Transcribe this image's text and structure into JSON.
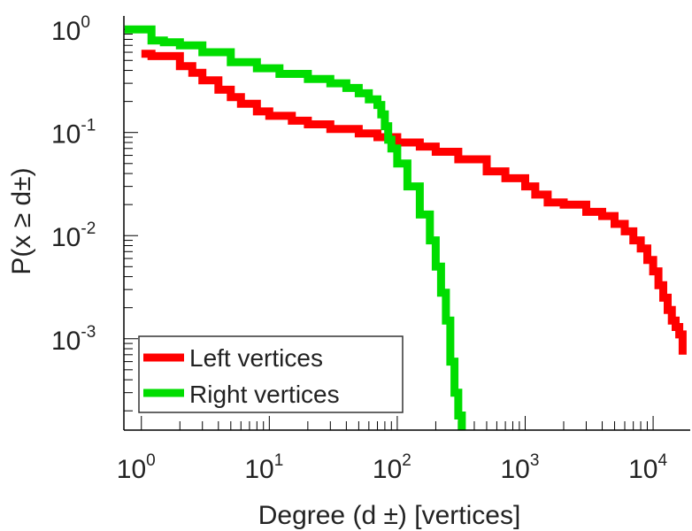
{
  "chart_data": {
    "type": "line",
    "title": "",
    "xlabel": "Degree (d ±) [vertices]",
    "ylabel": "P(x ≥ d±)",
    "xscale": "log",
    "yscale": "log",
    "xlim": [
      0.73,
      19500
    ],
    "ylim": [
      0.00013,
      1.35
    ],
    "x_ticks": [
      {
        "base": "10",
        "exp": "0",
        "value": 1
      },
      {
        "base": "10",
        "exp": "1",
        "value": 10
      },
      {
        "base": "10",
        "exp": "2",
        "value": 100
      },
      {
        "base": "10",
        "exp": "3",
        "value": 1000
      },
      {
        "base": "10",
        "exp": "4",
        "value": 10000
      }
    ],
    "y_ticks": [
      {
        "base": "10",
        "exp": "0",
        "value": 1
      },
      {
        "base": "10",
        "exp": "-1",
        "value": 0.1
      },
      {
        "base": "10",
        "exp": "-2",
        "value": 0.01
      },
      {
        "base": "10",
        "exp": "-3",
        "value": 0.001
      }
    ],
    "legend_position": "bottom-left",
    "series": [
      {
        "name": "Left vertices",
        "color": "#ff0000",
        "x": [
          1,
          1.2,
          2,
          2.5,
          3,
          4,
          5,
          6,
          8,
          10,
          15,
          20,
          30,
          50,
          70,
          100,
          150,
          200,
          300,
          500,
          700,
          1000,
          1200,
          1500,
          2000,
          3000,
          4000,
          5000,
          6000,
          7000,
          8000,
          9000,
          10000,
          11000,
          12000,
          13000,
          14000,
          15000,
          16000,
          17000
        ],
        "y": [
          0.58,
          0.55,
          0.44,
          0.38,
          0.32,
          0.26,
          0.22,
          0.19,
          0.16,
          0.145,
          0.13,
          0.12,
          0.108,
          0.098,
          0.09,
          0.08,
          0.073,
          0.065,
          0.055,
          0.042,
          0.036,
          0.03,
          0.025,
          0.021,
          0.02,
          0.017,
          0.0155,
          0.013,
          0.011,
          0.009,
          0.0075,
          0.0058,
          0.0045,
          0.0033,
          0.0025,
          0.0019,
          0.0015,
          0.0013,
          0.0011,
          0.0007
        ]
      },
      {
        "name": "Right vertices",
        "color": "#00dd00",
        "x": [
          0.74,
          1,
          1.2,
          1.5,
          2,
          3,
          5,
          8,
          12,
          20,
          30,
          40,
          50,
          60,
          70,
          75,
          80,
          85,
          90,
          100,
          120,
          150,
          180,
          200,
          220,
          240,
          260,
          280,
          300,
          320
        ],
        "y": [
          1.0,
          1.0,
          0.78,
          0.75,
          0.7,
          0.6,
          0.48,
          0.42,
          0.37,
          0.33,
          0.3,
          0.27,
          0.24,
          0.21,
          0.185,
          0.15,
          0.115,
          0.085,
          0.07,
          0.05,
          0.03,
          0.016,
          0.009,
          0.005,
          0.0028,
          0.0015,
          0.0006,
          0.0003,
          0.00018,
          0.00013
        ]
      }
    ]
  }
}
